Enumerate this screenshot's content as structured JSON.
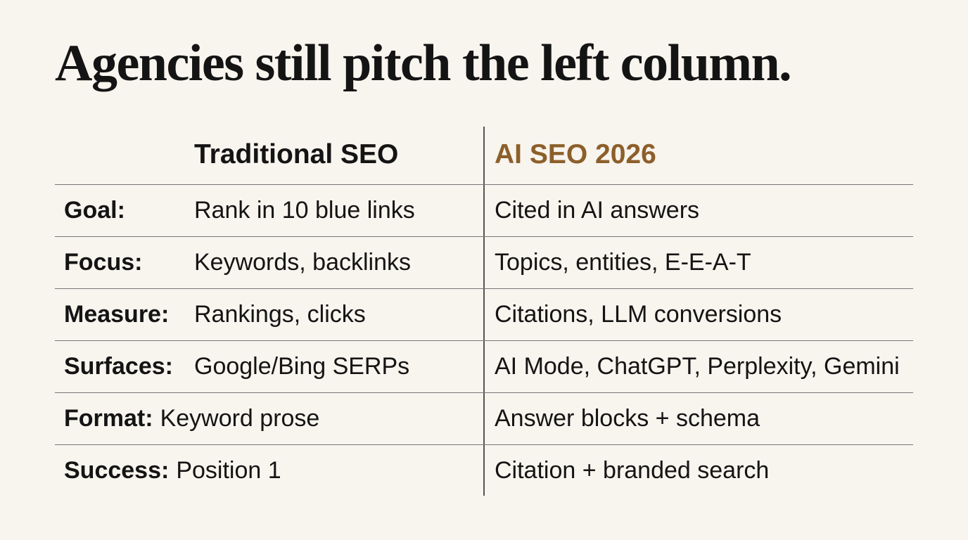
{
  "title": "Agencies still pitch the left column.",
  "table": {
    "header": [
      "Traditional SEO",
      "AI SEO 2026"
    ],
    "rows": [
      [
        "Goal:",
        "Rank in 10 blue links",
        "Cited in AI answers"
      ],
      [
        "Focus:",
        "Keywords, backlinks",
        "Topics, entities, E-E-A-T"
      ],
      [
        "Measure:",
        "Rankings, clicks",
        "Citations, LLM conversions"
      ],
      [
        "Surfaces:",
        "Google/Bing SERPs",
        "AI Mode, ChatGPT, Perplexity, Gemini"
      ],
      [
        "Format:",
        "Keyword prose",
        "Answer blocks + schema"
      ],
      [
        "Success:",
        "Position 1",
        "Citation + branded search"
      ]
    ]
  }
}
